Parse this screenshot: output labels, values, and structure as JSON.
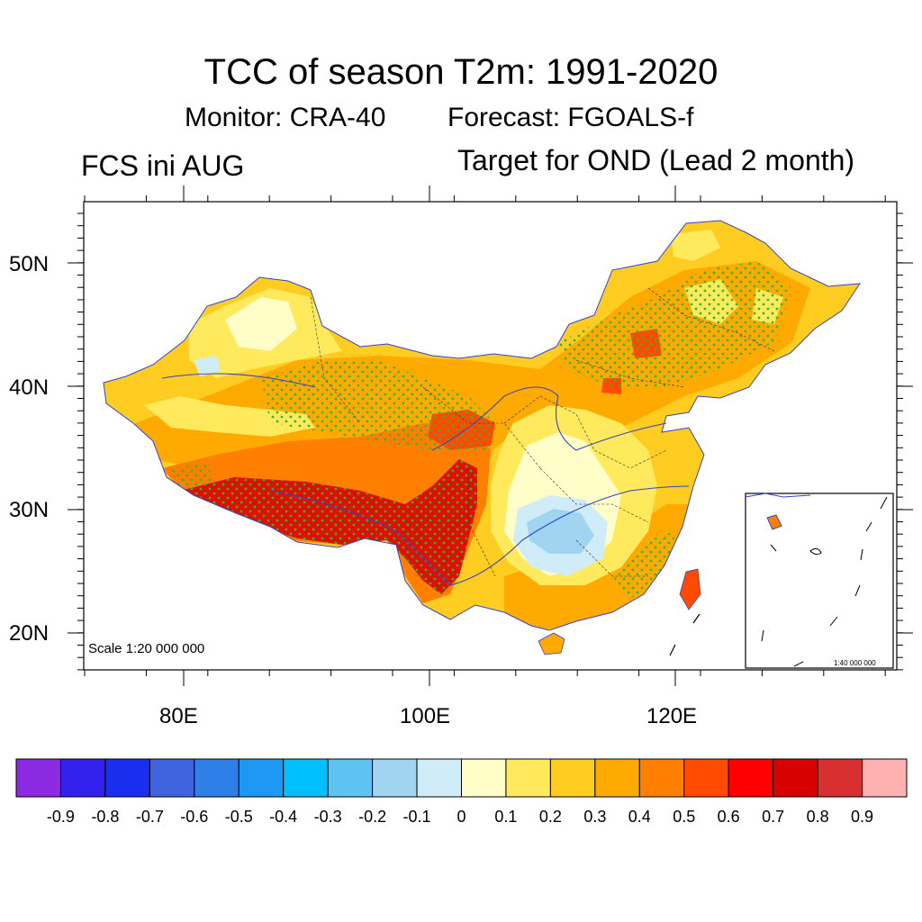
{
  "title": "TCC of season T2m: 1991-2020",
  "monitor": "Monitor: CRA-40",
  "forecast": "Forecast: FGOALS-f",
  "left_label": "FCS ini AUG",
  "right_label": "Target for OND (Lead 2 month)",
  "scale_main": "Scale 1:20 000 000",
  "scale_inset": "1:40 000 000",
  "lat_labels": [
    "50N",
    "40N",
    "30N",
    "20N"
  ],
  "lon_labels": [
    "80E",
    "100E",
    "120E"
  ],
  "colorbar": {
    "labels": [
      "-0.9",
      "-0.8",
      "-0.7",
      "-0.6",
      "-0.5",
      "-0.4",
      "-0.3",
      "-0.2",
      "-0.1",
      "0",
      "0.1",
      "0.2",
      "0.3",
      "0.4",
      "0.5",
      "0.6",
      "0.7",
      "0.8",
      "0.9"
    ],
    "colors": [
      "#8a2be2",
      "#3322ee",
      "#1a2ef0",
      "#3f63df",
      "#2f7fe9",
      "#1e97f5",
      "#00bfff",
      "#5ec3f0",
      "#a0d4f0",
      "#d0ecf8",
      "#fffdc8",
      "#ffe95c",
      "#ffcc22",
      "#ffaa00",
      "#ff8000",
      "#ff4a00",
      "#ff0000",
      "#d80000",
      "#d83030",
      "#ffb0b0"
    ]
  },
  "map": {
    "land_colors": {
      "pale": "#fffdc8",
      "yellow": "#ffe95c",
      "gold": "#ffcc22",
      "orange": "#ffaa00",
      "darkorange": "#ff8000",
      "redorange": "#ff4a00",
      "red": "#e01000",
      "lightblue": "#a0d4f0",
      "paleblue": "#d0ecf8"
    },
    "stipple_color": "#2db82d",
    "river_color": "#3344cc"
  }
}
